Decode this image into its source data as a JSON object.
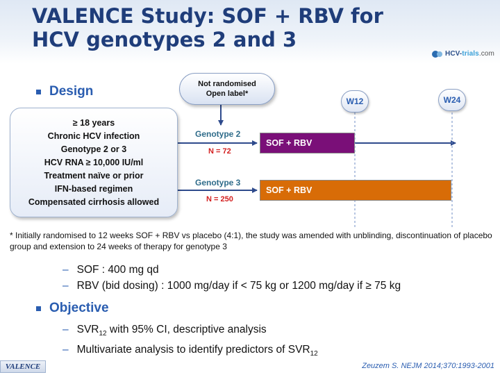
{
  "title": "VALENCE Study: SOF + RBV for HCV genotypes 2 and 3",
  "logo": {
    "text_main": "HCV-",
    "text_accent": "trials",
    "text_suffix": ".com"
  },
  "design": {
    "heading": "Design",
    "criteria": [
      "≥ 18 years",
      "Chronic HCV infection",
      "Genotype 2 or 3",
      "HCV RNA ≥ 10,000 IU/ml",
      "Treatment naïve or prior",
      "IFN-based regimen",
      "Compensated cirrhosis allowed"
    ],
    "randomisation": {
      "line1": "Not randomised",
      "line2": "Open label*"
    },
    "weeks": {
      "w12": "W12",
      "w24": "W24"
    },
    "arms": [
      {
        "genotype": "Genotype 2",
        "n": "N = 72",
        "treatment": "SOF + RBV",
        "color": "#7a0f78"
      },
      {
        "genotype": "Genotype 3",
        "n": "N = 250",
        "treatment": "SOF + RBV",
        "color": "#d86c07"
      }
    ],
    "footnote": "* Initially randomised to 12 weeks SOF + RBV vs placebo (4:1), the study was amended with unblinding, discontinuation of placebo group and extension to 24 weeks of therapy for genotype 3",
    "dosing": [
      "SOF : 400 mg qd",
      "RBV (bid dosing) : 1000 mg/day if < 75 kg or 1200 mg/day if ≥ 75 kg"
    ]
  },
  "objective": {
    "heading": "Objective",
    "item1_pre": "SVR",
    "item1_sub": "12",
    "item1_post": " with 95% CI, descriptive analysis",
    "item2_pre": "Multivariate analysis to identify predictors of SVR",
    "item2_sub": "12"
  },
  "footer": {
    "tag": "VALENCE",
    "reference": "Zeuzem S. NEJM 2014;370:1993-2001"
  },
  "colors": {
    "title": "#1f3d7a",
    "accent": "#2a5db0",
    "arrow": "#2e4a8c",
    "n_label": "#d31f1f"
  }
}
